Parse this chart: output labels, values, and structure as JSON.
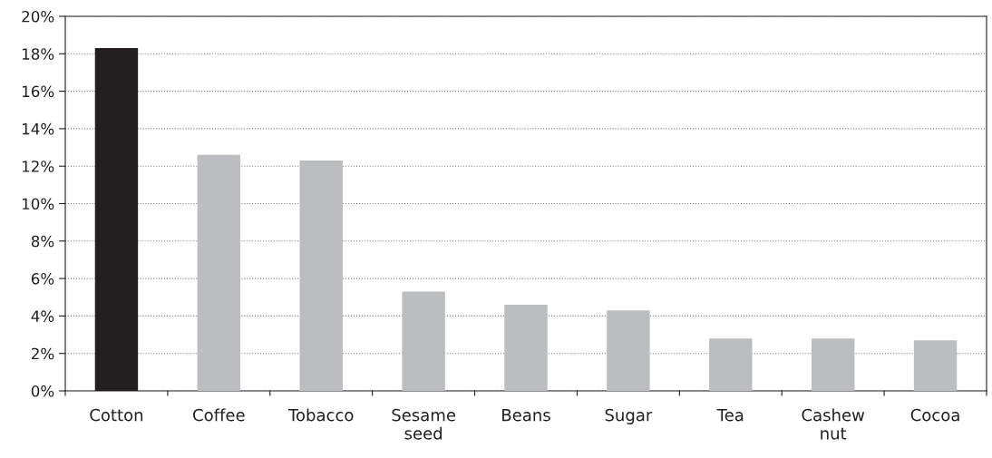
{
  "chart_data": {
    "type": "bar",
    "categories": [
      "Cotton",
      "Coffee",
      "Tobacco",
      "Sesame\nseed",
      "Beans",
      "Sugar",
      "Tea",
      "Cashew\nnut",
      "Cocoa"
    ],
    "values": [
      18.3,
      12.6,
      12.3,
      5.3,
      4.6,
      4.3,
      2.8,
      2.8,
      2.7
    ],
    "colors": [
      "#231f20",
      "#bcbdc0",
      "#bcbdc0",
      "#bcbdc0",
      "#bcbdc0",
      "#bcbdc0",
      "#bcbdc0",
      "#bcbdc0",
      "#bcbdc0"
    ],
    "ylim": [
      0,
      20
    ],
    "yticks": [
      {
        "value": 0,
        "label": "0%"
      },
      {
        "value": 2,
        "label": "2%"
      },
      {
        "value": 4,
        "label": "4%"
      },
      {
        "value": 6,
        "label": "6%"
      },
      {
        "value": 8,
        "label": "8%"
      },
      {
        "value": 10,
        "label": "10%"
      },
      {
        "value": 12,
        "label": "12%"
      },
      {
        "value": 14,
        "label": "14%"
      },
      {
        "value": 16,
        "label": "16%"
      },
      {
        "value": 18,
        "label": "18%"
      },
      {
        "value": 20,
        "label": "20%"
      }
    ],
    "grid": "y"
  }
}
